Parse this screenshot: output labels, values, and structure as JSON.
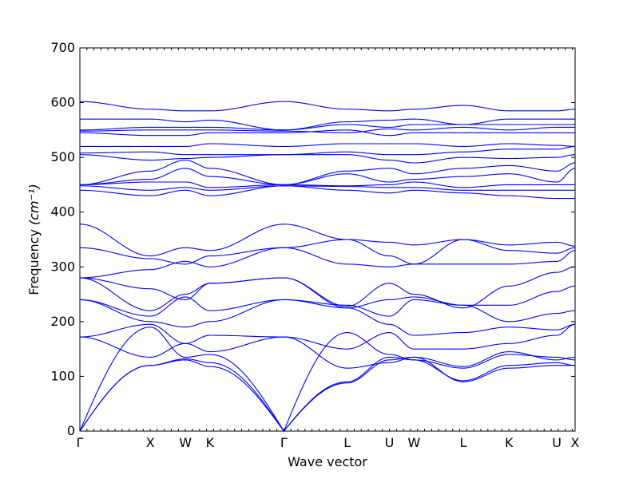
{
  "chart_data": {
    "type": "line",
    "title": "",
    "xlabel": "Wave vector",
    "ylabel": "Frequency",
    "ylabel_unit": "(cm⁻¹)",
    "ylim": [
      0,
      700
    ],
    "y_ticks": [
      0,
      100,
      200,
      300,
      400,
      500,
      600,
      700
    ],
    "grid": false,
    "legend": "none",
    "line_color": "#0000ff",
    "x_range": [
      0,
      7.04
    ],
    "high_symmetry_points": [
      {
        "label": "Γ",
        "x": 0.0
      },
      {
        "label": "X",
        "x": 1.0
      },
      {
        "label": "W",
        "x": 1.5
      },
      {
        "label": "K",
        "x": 1.85
      },
      {
        "label": "Γ",
        "x": 2.9
      },
      {
        "label": "L",
        "x": 3.8
      },
      {
        "label": "U",
        "x": 4.4
      },
      {
        "label": "W",
        "x": 4.75
      },
      {
        "label": "L",
        "x": 5.45
      },
      {
        "label": "K",
        "x": 6.1
      },
      {
        "label": "U",
        "x": 6.78
      },
      {
        "label": "X",
        "x": 7.04
      }
    ],
    "series": [
      {
        "values": [
          0,
          120,
          130,
          118,
          0,
          88,
          130,
          135,
          90,
          115,
          120,
          120
        ]
      },
      {
        "values": [
          0,
          120,
          132,
          125,
          0,
          90,
          135,
          130,
          92,
          120,
          125,
          120
        ]
      },
      {
        "values": [
          0,
          190,
          135,
          140,
          0,
          180,
          140,
          130,
          115,
          140,
          135,
          130
        ]
      },
      {
        "values": [
          172,
          135,
          160,
          145,
          172,
          115,
          125,
          135,
          118,
          145,
          130,
          135
        ]
      },
      {
        "values": [
          172,
          195,
          160,
          175,
          172,
          150,
          180,
          150,
          150,
          160,
          175,
          195
        ]
      },
      {
        "values": [
          240,
          200,
          190,
          200,
          240,
          225,
          195,
          175,
          180,
          190,
          185,
          195
        ]
      },
      {
        "values": [
          240,
          210,
          245,
          220,
          240,
          230,
          210,
          240,
          230,
          200,
          215,
          220
        ]
      },
      {
        "values": [
          280,
          220,
          250,
          270,
          280,
          225,
          240,
          245,
          230,
          230,
          255,
          265
        ]
      },
      {
        "values": [
          280,
          260,
          240,
          270,
          280,
          228,
          270,
          250,
          225,
          265,
          290,
          300
        ]
      },
      {
        "values": [
          280,
          295,
          310,
          300,
          335,
          305,
          300,
          305,
          305,
          305,
          310,
          330
        ]
      },
      {
        "values": [
          335,
          315,
          305,
          320,
          335,
          350,
          320,
          305,
          350,
          330,
          325,
          335
        ]
      },
      {
        "values": [
          378,
          320,
          335,
          330,
          378,
          350,
          345,
          340,
          350,
          340,
          345,
          338
        ]
      },
      {
        "values": [
          440,
          430,
          440,
          430,
          448,
          440,
          435,
          440,
          435,
          430,
          425,
          425
        ]
      },
      {
        "values": [
          448,
          440,
          445,
          440,
          448,
          447,
          445,
          445,
          440,
          440,
          440,
          440
        ]
      },
      {
        "values": [
          450,
          455,
          455,
          445,
          450,
          448,
          450,
          455,
          445,
          450,
          450,
          450
        ]
      },
      {
        "values": [
          450,
          460,
          480,
          465,
          450,
          470,
          455,
          460,
          465,
          470,
          455,
          480
        ]
      },
      {
        "values": [
          450,
          475,
          495,
          480,
          450,
          475,
          480,
          470,
          480,
          485,
          475,
          490
        ]
      },
      {
        "values": [
          505,
          495,
          498,
          500,
          505,
          505,
          495,
          490,
          500,
          498,
          500,
          505
        ]
      },
      {
        "values": [
          508,
          510,
          505,
          505,
          505,
          510,
          505,
          505,
          510,
          515,
          515,
          520
        ]
      },
      {
        "values": [
          520,
          520,
          520,
          525,
          520,
          525,
          525,
          525,
          520,
          525,
          522,
          520
        ]
      },
      {
        "values": [
          545,
          540,
          540,
          545,
          545,
          550,
          540,
          545,
          545,
          545,
          545,
          545
        ]
      },
      {
        "values": [
          548,
          550,
          550,
          550,
          548,
          545,
          552,
          550,
          555,
          550,
          555,
          555
        ]
      },
      {
        "values": [
          550,
          555,
          555,
          555,
          550,
          560,
          555,
          560,
          560,
          560,
          560,
          560
        ]
      },
      {
        "values": [
          570,
          570,
          565,
          568,
          550,
          565,
          568,
          570,
          560,
          570,
          570,
          570
        ]
      },
      {
        "values": [
          602,
          588,
          585,
          585,
          602,
          588,
          585,
          588,
          595,
          585,
          585,
          588
        ]
      }
    ]
  }
}
